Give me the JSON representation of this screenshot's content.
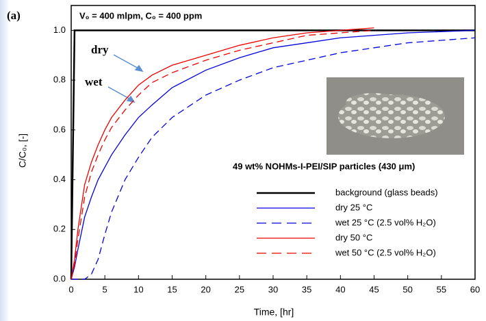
{
  "chart_data": {
    "type": "line",
    "panel_label": "(a)",
    "annotation": "V₀ = 400 mlpm, C₀ = 400 ppm",
    "x_label": "Time, [hr]",
    "y_label": "C/C₀, [-]",
    "legend_title": "49 wt% NOHMs-I-PEI/SIP particles (430 μm)",
    "arrow_labels": [
      "dry",
      "wet"
    ],
    "x": [
      0,
      0.5,
      1,
      2,
      3,
      4,
      5,
      6,
      8,
      10,
      12,
      15,
      20,
      25,
      30,
      35,
      40,
      45,
      50,
      55,
      60
    ],
    "series": [
      {
        "name": "background (glass beads)",
        "color": "#000000",
        "dash": false,
        "width": 2.5,
        "values": [
          0,
          1,
          1,
          1,
          1,
          1,
          1,
          1,
          1,
          1,
          1,
          1,
          1,
          1,
          1,
          1,
          1,
          1,
          1,
          1,
          1
        ]
      },
      {
        "name": "dry 25 °C",
        "color": "#0000dd",
        "dash": false,
        "width": 1.3,
        "values": [
          0,
          0.05,
          0.12,
          0.25,
          0.33,
          0.4,
          0.45,
          0.5,
          0.58,
          0.65,
          0.7,
          0.77,
          0.84,
          0.89,
          0.93,
          0.95,
          0.97,
          0.98,
          0.99,
          0.995,
          1.0
        ]
      },
      {
        "name": "wet 25 °C (2.5 vol% H₂O)",
        "color": "#0000dd",
        "dash": true,
        "width": 1.3,
        "values": [
          0,
          0,
          0,
          0,
          0.02,
          0.08,
          0.18,
          0.27,
          0.4,
          0.49,
          0.57,
          0.65,
          0.74,
          0.8,
          0.85,
          0.88,
          0.91,
          0.93,
          0.95,
          0.96,
          0.97
        ]
      },
      {
        "name": "dry 50 °C",
        "color": "#ee0000",
        "dash": false,
        "width": 1.3,
        "values": [
          0,
          0.08,
          0.2,
          0.38,
          0.47,
          0.54,
          0.6,
          0.65,
          0.72,
          0.78,
          0.82,
          0.86,
          0.9,
          0.94,
          0.97,
          0.99,
          1.0,
          1.01,
          null,
          null,
          null
        ]
      },
      {
        "name": "wet 50 °C (2.5 vol% H₂O)",
        "color": "#ee0000",
        "dash": true,
        "width": 1.3,
        "values": [
          0,
          0.06,
          0.16,
          0.33,
          0.43,
          0.5,
          0.56,
          0.61,
          0.68,
          0.74,
          0.79,
          0.83,
          0.88,
          0.92,
          0.95,
          0.98,
          0.99,
          1.0,
          null,
          null,
          null
        ]
      }
    ],
    "xlim": [
      0,
      60
    ],
    "xticks": [
      0,
      5,
      10,
      15,
      20,
      25,
      30,
      35,
      40,
      45,
      50,
      55,
      60
    ],
    "ylim": [
      0,
      1.1
    ],
    "yticks": [
      {
        "value": 0,
        "label": "0.0"
      },
      0.2,
      0.4,
      0.6,
      0.8,
      {
        "value": 1,
        "label": "1.0"
      }
    ],
    "grid": false
  }
}
